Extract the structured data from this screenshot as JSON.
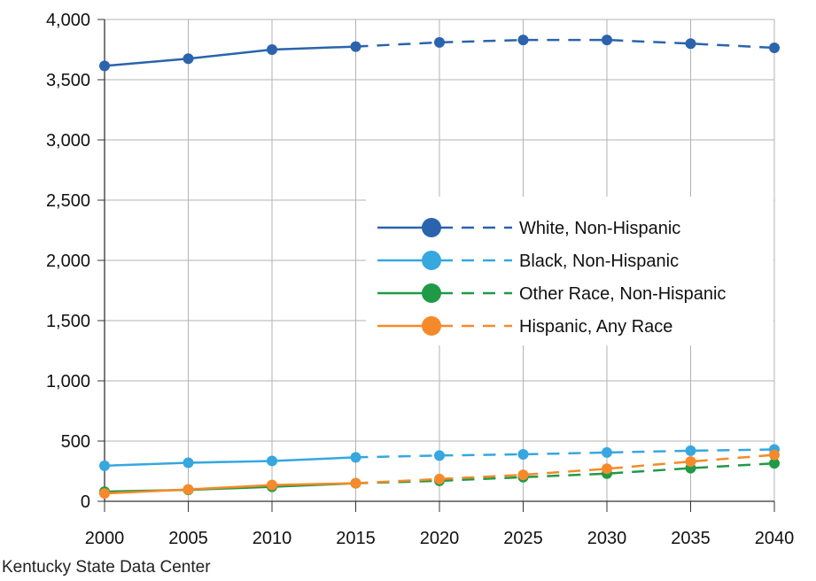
{
  "source": "Kentucky State Data Center",
  "chart_data": {
    "type": "line",
    "title": "",
    "xlabel": "",
    "ylabel": "",
    "x": [
      2000,
      2005,
      2010,
      2015,
      2020,
      2025,
      2030,
      2035,
      2040
    ],
    "xlim": [
      2000,
      2040
    ],
    "ylim": [
      0,
      4000
    ],
    "x_ticks": [
      "2000",
      "2005",
      "2010",
      "2015",
      "2020",
      "2025",
      "2030",
      "2035",
      "2040"
    ],
    "y_ticks": [
      "0",
      "500",
      "1,000",
      "1,500",
      "2,000",
      "2,500",
      "3,000",
      "3,500",
      "4,000"
    ],
    "y_tick_values": [
      0,
      500,
      1000,
      1500,
      2000,
      2500,
      3000,
      3500,
      4000
    ],
    "grid": true,
    "legend_position": "center-right",
    "projection_style": "dashed lines from 2015 onward",
    "series": [
      {
        "name": "White, Non-Hispanic",
        "color": "#2b63ad",
        "values": [
          3615,
          3675,
          3750,
          3775,
          3810,
          3830,
          3830,
          3800,
          3765
        ]
      },
      {
        "name": "Black, Non-Hispanic",
        "color": "#36a7df",
        "values": [
          295,
          320,
          335,
          365,
          380,
          390,
          405,
          420,
          430
        ]
      },
      {
        "name": "Other Race, Non-Hispanic",
        "color": "#1f9a46",
        "values": [
          80,
          95,
          120,
          150,
          170,
          200,
          230,
          275,
          315
        ]
      },
      {
        "name": "Hispanic, Any Race",
        "color": "#f58a2a",
        "values": [
          65,
          98,
          135,
          150,
          185,
          220,
          270,
          330,
          385
        ]
      }
    ]
  }
}
